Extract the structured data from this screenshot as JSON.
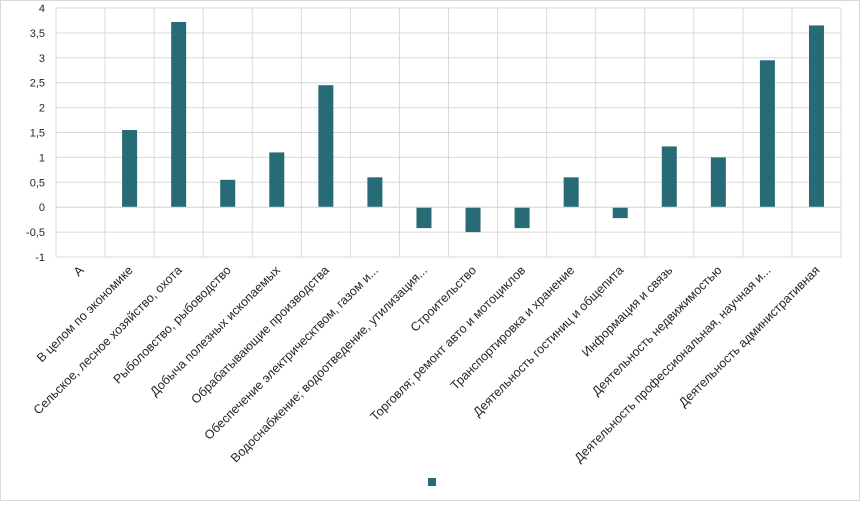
{
  "chart_data": {
    "type": "bar",
    "categories": [
      "А",
      "В целом по экономике",
      "Сельское, лесное хозяйство, охота",
      "Рыболовство, рыбоводство",
      "Добыча полезных ископаемых",
      "Обрабатывающие производства",
      "Обеспечение электрическтвом, газом и...",
      "Водоснабжение; водоотведение, утилизация...",
      "Строительство",
      "Торговля; ремонт авто и мотоциклов",
      "Транспортировка и хранение",
      "Деятельность гостиниц и общепита",
      "Информация и связь",
      "Деятельность недвижимостью",
      "Деятельность профессиональная, научная и...",
      "Деятельность административная"
    ],
    "series": [
      {
        "values": [
          null,
          1.55,
          3.72,
          0.55,
          1.1,
          2.45,
          0.6,
          -0.42,
          -0.5,
          -0.42,
          0.6,
          -0.22,
          1.22,
          1.0,
          2.95,
          3.65
        ],
        "color": "#276B76"
      }
    ],
    "ylim": [
      -1,
      4
    ],
    "y_ticks": [
      4,
      3.5,
      3,
      2.5,
      2,
      1.5,
      1,
      0.5,
      0,
      -0.5,
      -1
    ],
    "y_tick_labels": [
      "4",
      "3,5",
      "3",
      "2,5",
      "2",
      "1,5",
      "1",
      "0,5",
      "0",
      "-0,5",
      "-1"
    ],
    "grid": true,
    "legend_placement": "bottom",
    "gridline_color": "#d9d9d9",
    "zero_line_color": "#d9d9d9"
  }
}
